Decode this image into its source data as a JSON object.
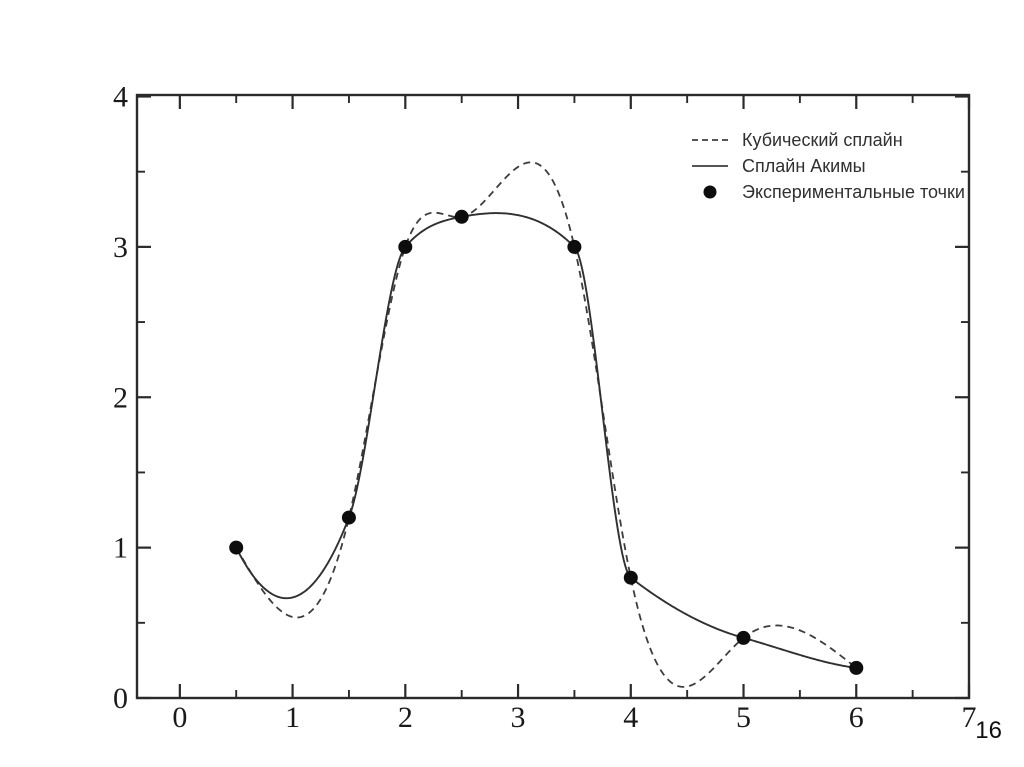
{
  "page": {
    "number": "16"
  },
  "colors": {
    "background": "#ffffff",
    "axis": "#2a2a2a",
    "tick_label": "#1a1a1a",
    "cubic_spline": "#3d3d3d",
    "akima_spline": "#303030",
    "point": "#0d0d0d",
    "legend_sample": "#555555",
    "legend_text": "#303030",
    "page_number": "#111111"
  },
  "chart_data": {
    "type": "line",
    "title": "",
    "xlabel": "",
    "ylabel": "",
    "points": {
      "x": [
        0.5,
        1.5,
        2.0,
        2.5,
        3.5,
        4.0,
        5.0,
        6.0
      ],
      "y": [
        1.0,
        1.2,
        3.0,
        3.2,
        3.0,
        0.8,
        0.4,
        0.2
      ]
    },
    "series": [
      {
        "name": "Кубический сплайн",
        "method": "cubic",
        "style": "dashed"
      },
      {
        "name": "Сплайн Акимы",
        "method": "akima",
        "style": "solid"
      },
      {
        "name": "Экспериментальные точки",
        "method": "points",
        "style": "dot"
      }
    ],
    "x_major_ticks": [
      0,
      1,
      2,
      3,
      4,
      5,
      6,
      7
    ],
    "x_minor_ticks": [
      0.5,
      1.5,
      2.5,
      3.5,
      4.5,
      5.5,
      6.5
    ],
    "y_major_ticks": [
      0,
      1,
      2,
      3,
      4
    ],
    "y_minor_ticks": [
      0.5,
      1.5,
      2.5,
      3.5
    ],
    "xlim": [
      -0.38,
      7.0
    ],
    "ylim": [
      0,
      4.01
    ],
    "grid": false,
    "legend_position": "upper right"
  }
}
